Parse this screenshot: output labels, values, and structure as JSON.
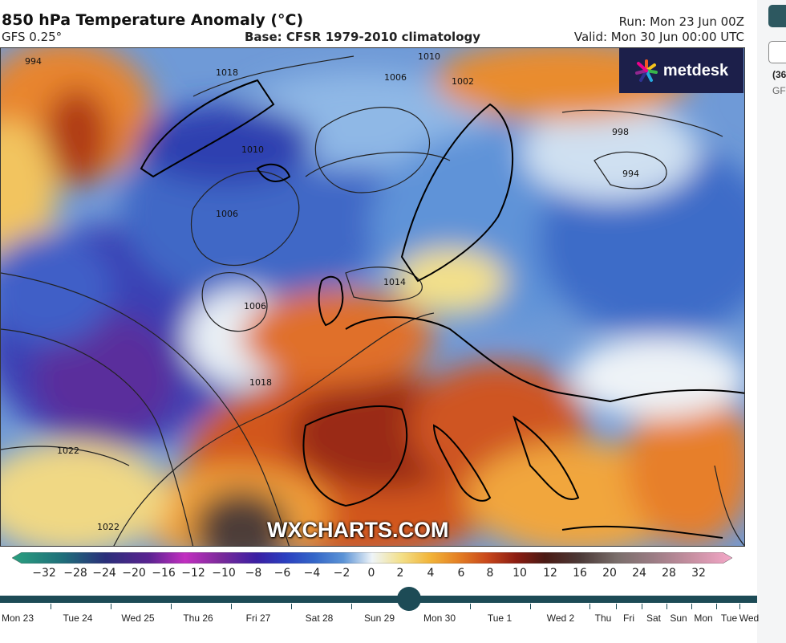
{
  "header": {
    "title": "850 hPa Temperature Anomaly (°C)",
    "model": "GFS 0.25°",
    "base": "Base: CFSR 1979-2010 climatology",
    "run": "Run: Mon 23 Jun 00Z",
    "valid": "Valid: Mon 30 Jun 00:00 UTC"
  },
  "logo": {
    "text": "metdesk"
  },
  "watermark": "WXCHARTS.COM",
  "isobars": [
    "994",
    "1002",
    "1006",
    "1010",
    "1014",
    "1018",
    "1022",
    "998"
  ],
  "scale": {
    "ticks": [
      "−32",
      "−28",
      "−24",
      "−20",
      "−16",
      "−12",
      "−10",
      "−8",
      "−6",
      "−4",
      "−2",
      "0",
      "2",
      "4",
      "6",
      "8",
      "10",
      "12",
      "16",
      "20",
      "24",
      "28",
      "32"
    ],
    "colors": [
      "#2aa07f",
      "#1f6f7a",
      "#2a2f7a",
      "#5a2391",
      "#c22fc0",
      "#7a2a9a",
      "#3a1fa3",
      "#2a3fc0",
      "#3467c8",
      "#5b93d6",
      "#a9cbe8",
      "#eef4f8",
      "#f3e08a",
      "#f2b53a",
      "#e47f24",
      "#c8471b",
      "#8c1d12",
      "#4a1a14",
      "#4d3b39",
      "#7a6e6b",
      "#9b7c84",
      "#c48e9f",
      "#f4a7c8"
    ]
  },
  "timeline": {
    "days": [
      "Mon 23",
      "Tue 24",
      "Wed 25",
      "Thu 26",
      "Fri 27",
      "Sat 28",
      "Sun 29",
      "Mon 30",
      "Tue 1",
      "Wed 2",
      "Thu",
      "Fri",
      "Sat",
      "Sun",
      "Mon",
      "Tue",
      "Wed"
    ]
  },
  "side": {
    "label1": "(36",
    "label2": "GF"
  }
}
